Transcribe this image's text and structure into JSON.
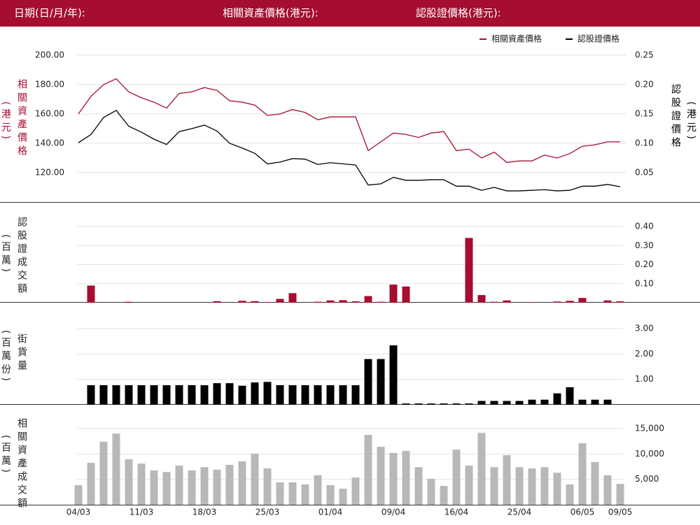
{
  "header": {
    "labels": [
      "日期(日/月/年):",
      "相關資產價格(港元):",
      "認股證價格(港元):"
    ]
  },
  "chart_data": [
    {
      "type": "line",
      "legend": "top-right",
      "ylabel": "相關資產價格",
      "yunit": "(港元)",
      "y2label": "認股證價格",
      "y2unit": "(港元)",
      "ylim": [
        100,
        200
      ],
      "yticks": [
        {
          "value": 200,
          "label": "200.00"
        },
        {
          "value": 180,
          "label": "180.00"
        },
        {
          "value": 160,
          "label": "160.00"
        },
        {
          "value": 140,
          "label": "140.00"
        },
        {
          "value": 120,
          "label": "120.00"
        }
      ],
      "y2lim": [
        0,
        0.25
      ],
      "y2ticks": [
        0.25,
        {
          "value": 0.2,
          "label": "0.20"
        },
        0.15,
        {
          "value": 0.1,
          "label": "0.10"
        },
        0.05
      ],
      "grid": true,
      "series": [
        {
          "name": "相關資產價格",
          "color": "#a50e30",
          "values": [
            160,
            172,
            180,
            184,
            175,
            171,
            168,
            164,
            174,
            175,
            178,
            176,
            169,
            168,
            166,
            159,
            160,
            163,
            161,
            156,
            158,
            158,
            158,
            135,
            141,
            147,
            146,
            144,
            147,
            148,
            135,
            136,
            130,
            134,
            127,
            128,
            128,
            132,
            130,
            133,
            138,
            139,
            141,
            141
          ]
        },
        {
          "name": "認股證價格",
          "color": "#000000",
          "axis": "y2",
          "values": [
            0.101,
            0.115,
            0.144,
            0.156,
            0.129,
            0.119,
            0.107,
            0.098,
            0.12,
            0.125,
            0.131,
            0.121,
            0.1,
            0.092,
            0.083,
            0.065,
            0.068,
            0.074,
            0.073,
            0.064,
            0.067,
            0.065,
            0.063,
            0.029,
            0.031,
            0.042,
            0.037,
            0.037,
            0.038,
            0.038,
            0.027,
            0.027,
            0.02,
            0.025,
            0.019,
            0.019,
            0.02,
            0.021,
            0.019,
            0.02,
            0.027,
            0.027,
            0.03,
            0.026
          ]
        }
      ]
    },
    {
      "type": "bar",
      "ylabel": "認股證成交額",
      "yunit": "(百萬)",
      "yaxis_side": "right",
      "color": "#a50e30",
      "grid": true,
      "ylim": [
        0,
        0.4
      ],
      "yticks": [
        {
          "value": 0.4,
          "label": "0.40"
        },
        {
          "value": 0.3,
          "label": "0.30"
        },
        {
          "value": 0.2,
          "label": "0.20"
        },
        {
          "value": 0.1,
          "label": "0.10"
        }
      ],
      "values": [
        0,
        0.09,
        0,
        0,
        0.005,
        0,
        0,
        0,
        0,
        0,
        0,
        0.008,
        0,
        0.01,
        0.008,
        0.003,
        0.02,
        0.05,
        0,
        0.005,
        0.012,
        0.013,
        0.007,
        0.035,
        0.005,
        0.095,
        0.085,
        0,
        0,
        0,
        0,
        0.34,
        0.04,
        0.005,
        0.012,
        0,
        0.003,
        0,
        0.006,
        0.01,
        0.025,
        0,
        0.012,
        0.007
      ]
    },
    {
      "type": "bar",
      "ylabel": "街貨量",
      "yunit": "(百萬份)",
      "yaxis_side": "right",
      "color": "#000000",
      "grid": true,
      "ylim": [
        0,
        3
      ],
      "yticks": [
        {
          "value": 3,
          "label": "3.00"
        },
        {
          "value": 2,
          "label": "2.00"
        },
        {
          "value": 1,
          "label": "1.00"
        }
      ],
      "values": [
        0,
        0.77,
        0.77,
        0.77,
        0.77,
        0.77,
        0.77,
        0.77,
        0.77,
        0.77,
        0.77,
        0.85,
        0.85,
        0.75,
        0.88,
        0.9,
        0.77,
        0.77,
        0.77,
        0.77,
        0.77,
        0.77,
        0.77,
        1.8,
        1.8,
        2.34,
        0.05,
        0.05,
        0.05,
        0.05,
        0.05,
        0.05,
        0.15,
        0.15,
        0.15,
        0.15,
        0.2,
        0.2,
        0.45,
        0.69,
        0.2,
        0.2,
        0.2,
        0
      ]
    },
    {
      "type": "bar",
      "ylabel": "相關資產成交額",
      "yunit": "(百萬)",
      "yaxis_side": "right",
      "color": "#b8b8b8",
      "grid": true,
      "ylim": [
        0,
        15000
      ],
      "yticks": [
        {
          "value": 15000,
          "label": "15,000"
        },
        {
          "value": 10000,
          "label": "10,000"
        },
        {
          "value": 5000,
          "label": "5,000"
        }
      ],
      "categories": [
        "04/03",
        null,
        null,
        null,
        null,
        "11/03",
        null,
        null,
        null,
        null,
        "18/03",
        null,
        null,
        null,
        null,
        "25/03",
        null,
        null,
        null,
        null,
        "01/04",
        null,
        null,
        null,
        null,
        "09/04",
        null,
        null,
        null,
        null,
        "16/04",
        null,
        null,
        null,
        null,
        "25/04",
        null,
        null,
        null,
        null,
        "06/05",
        null,
        null,
        "09/05"
      ],
      "values": [
        3850,
        8250,
        12400,
        14000,
        8950,
        8100,
        6750,
        6450,
        7700,
        6750,
        7400,
        6900,
        7850,
        8550,
        10050,
        7150,
        4400,
        4400,
        4000,
        5800,
        3850,
        3150,
        5350,
        13750,
        11400,
        10200,
        10600,
        7400,
        5100,
        3700,
        10850,
        7700,
        14150,
        7400,
        9750,
        7400,
        7150,
        7400,
        6300,
        4000,
        12100,
        8400,
        5800,
        4100
      ]
    }
  ]
}
